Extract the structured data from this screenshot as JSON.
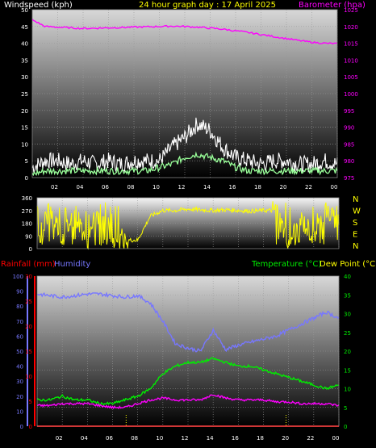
{
  "chart_data": [
    {
      "type": "line",
      "panel": "wind-barometer",
      "title": "24 hour graph day : 17 April 2025",
      "ylabel": "Windspeed (kph)",
      "ylabel_right": "Barometer (hpa)",
      "x_ticks": [
        "02",
        "04",
        "06",
        "08",
        "10",
        "12",
        "14",
        "16",
        "18",
        "20",
        "22",
        "00"
      ],
      "ylim": [
        0,
        50
      ],
      "y_ticks": [
        "0",
        "5",
        "10",
        "15",
        "20",
        "25",
        "30",
        "35",
        "40",
        "45",
        "50"
      ],
      "ylim_right": [
        975,
        1025
      ],
      "y_ticks_right": [
        "975",
        "980",
        "985",
        "990",
        "995",
        "1000",
        "1005",
        "1010",
        "1015",
        "1020",
        "1025"
      ],
      "x": [
        0,
        1,
        2,
        3,
        4,
        5,
        6,
        7,
        8,
        9,
        10,
        11,
        12,
        13,
        14,
        15,
        16,
        17,
        18,
        19,
        20,
        21,
        22,
        23,
        24
      ],
      "series": [
        {
          "name": "gust",
          "color": "#ffffff",
          "values": [
            3,
            5,
            5,
            4,
            5,
            4,
            5,
            4,
            5,
            5,
            5,
            9,
            12,
            16,
            14,
            9,
            6,
            5,
            4,
            5,
            5,
            4,
            4,
            5,
            4
          ]
        },
        {
          "name": "average",
          "color": "#99ff99",
          "values": [
            1,
            2,
            2,
            2,
            2,
            2,
            2,
            2,
            2,
            2,
            3,
            4,
            6,
            7,
            6,
            5,
            3,
            2,
            2,
            2,
            2,
            2,
            2,
            2,
            2
          ]
        },
        {
          "name": "barometer",
          "color": "#ff00ff",
          "axis": "right",
          "values": [
            1022,
            1020,
            1019.8,
            1019.6,
            1019.4,
            1019.5,
            1019.6,
            1019.7,
            1019.8,
            1019.9,
            1020,
            1020.1,
            1020,
            1019.8,
            1019.5,
            1019.2,
            1018.7,
            1018.2,
            1017.6,
            1017,
            1016.4,
            1015.8,
            1015.3,
            1015,
            1014.9
          ]
        }
      ]
    },
    {
      "type": "line",
      "panel": "wind-direction",
      "ylim": [
        0,
        360
      ],
      "y_ticks": [
        "0",
        "90",
        "180",
        "270",
        "360"
      ],
      "y_ticks_right": [
        "N",
        "E",
        "S",
        "W",
        "N"
      ],
      "x": [
        0,
        1,
        2,
        3,
        4,
        5,
        6,
        7,
        8,
        9,
        10,
        11,
        12,
        13,
        14,
        15,
        16,
        17,
        18,
        19,
        20,
        21,
        22,
        23,
        24
      ],
      "series": [
        {
          "name": "direction",
          "color": "#ffff00",
          "values": [
            60,
            280,
            90,
            250,
            60,
            260,
            90,
            60,
            60,
            230,
            270,
            270,
            280,
            275,
            270,
            275,
            270,
            265,
            270,
            270,
            50,
            200,
            90,
            280,
            150
          ]
        }
      ]
    },
    {
      "type": "line",
      "panel": "temperature-humidity-rain",
      "label_rainfall": "Rainfall (mm)",
      "label_humidity": "Humidity",
      "label_temperature": "Temperature (°C)",
      "label_dewpoint": "Dew Point (°C)",
      "x_ticks": [
        "02",
        "04",
        "06",
        "08",
        "10",
        "12",
        "14",
        "16",
        "18",
        "20",
        "22",
        "00"
      ],
      "humidity_axis": {
        "ylim": [
          0,
          100
        ],
        "y_ticks": [
          "0",
          "10",
          "20",
          "30",
          "40",
          "50",
          "60",
          "70",
          "80",
          "90",
          "100"
        ]
      },
      "rain_axis": {
        "ylim": [
          0,
          30
        ],
        "y_ticks": [
          "0",
          "5",
          "10",
          "15",
          "20",
          "25",
          "30"
        ]
      },
      "temp_axis": {
        "ylim": [
          0,
          40
        ],
        "y_ticks": [
          "0",
          "5",
          "10",
          "15",
          "20",
          "25",
          "30",
          "35",
          "40"
        ]
      },
      "x": [
        0,
        1,
        2,
        3,
        4,
        5,
        6,
        7,
        8,
        9,
        10,
        11,
        12,
        13,
        14,
        15,
        16,
        17,
        18,
        19,
        20,
        21,
        22,
        23,
        24
      ],
      "series": [
        {
          "name": "Humidity",
          "color": "#7777ff",
          "axis": "humidity",
          "values": [
            88,
            87,
            86,
            87,
            88,
            88,
            87,
            86,
            87,
            82,
            70,
            55,
            52,
            50,
            64,
            51,
            54,
            56,
            58,
            60,
            64,
            68,
            72,
            76,
            72
          ]
        },
        {
          "name": "Temperature",
          "color": "#00ee00",
          "axis": "temp",
          "values": [
            7,
            7,
            8,
            7,
            7,
            6,
            6,
            7,
            8,
            10,
            14,
            16,
            17,
            17,
            18,
            17,
            16,
            16,
            15,
            14,
            13,
            12,
            11,
            10,
            11
          ]
        },
        {
          "name": "Dew Point",
          "color": "#ff00ff",
          "axis": "temp",
          "values": [
            5.5,
            5.5,
            6,
            6,
            6,
            5.5,
            5,
            5,
            6,
            7,
            7.5,
            7,
            7,
            7,
            8.5,
            7.5,
            7,
            7,
            7,
            6.5,
            6.5,
            6,
            6,
            6,
            5.5
          ]
        },
        {
          "name": "Rainfall",
          "color": "#ff0000",
          "axis": "rain",
          "values": [
            0,
            0,
            0,
            0,
            0,
            0,
            0,
            0,
            0,
            0,
            0,
            0,
            0,
            0,
            0,
            0,
            0,
            0,
            0,
            0,
            0,
            0,
            0,
            0,
            0
          ]
        }
      ]
    }
  ]
}
